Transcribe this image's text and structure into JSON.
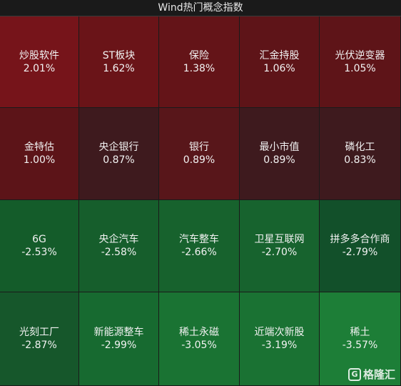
{
  "title": "Wind热门概念指数",
  "tiles": [
    {
      "name": "炒股软件",
      "pct": "2.01%",
      "color": "#76141a"
    },
    {
      "name": "ST板块",
      "pct": "1.62%",
      "color": "#6a1418"
    },
    {
      "name": "保险",
      "pct": "1.38%",
      "color": "#641418"
    },
    {
      "name": "汇金持股",
      "pct": "1.06%",
      "color": "#5e1418"
    },
    {
      "name": "光伏逆变器",
      "pct": "1.05%",
      "color": "#5e1418"
    },
    {
      "name": "金特估",
      "pct": "1.00%",
      "color": "#5c1418"
    },
    {
      "name": "央企银行",
      "pct": "0.87%",
      "color": "#3e1a1e"
    },
    {
      "name": "银行",
      "pct": "0.89%",
      "color": "#58161a"
    },
    {
      "name": "最小市值",
      "pct": "0.89%",
      "color": "#3e1a1e"
    },
    {
      "name": "磷化工",
      "pct": "0.83%",
      "color": "#3e1a1e"
    },
    {
      "name": "6G",
      "pct": "-2.53%",
      "color": "#145c2a"
    },
    {
      "name": "央企汽车",
      "pct": "-2.58%",
      "color": "#165e2c"
    },
    {
      "name": "汽车整车",
      "pct": "-2.66%",
      "color": "#17622d"
    },
    {
      "name": "卫星互联网",
      "pct": "-2.70%",
      "color": "#17632e"
    },
    {
      "name": "拼多多合作商",
      "pct": "-2.79%",
      "color": "#12502a"
    },
    {
      "name": "光刻工厂",
      "pct": "-2.87%",
      "color": "#16572b"
    },
    {
      "name": "新能源整车",
      "pct": "-2.99%",
      "color": "#176a30"
    },
    {
      "name": "稀土永磁",
      "pct": "-3.05%",
      "color": "#1a7333"
    },
    {
      "name": "近端次新股",
      "pct": "-3.19%",
      "color": "#1a7233"
    },
    {
      "name": "稀土",
      "pct": "-3.57%",
      "color": "#1d7e37"
    }
  ],
  "watermark": {
    "logo": "G",
    "text": "格隆汇"
  }
}
